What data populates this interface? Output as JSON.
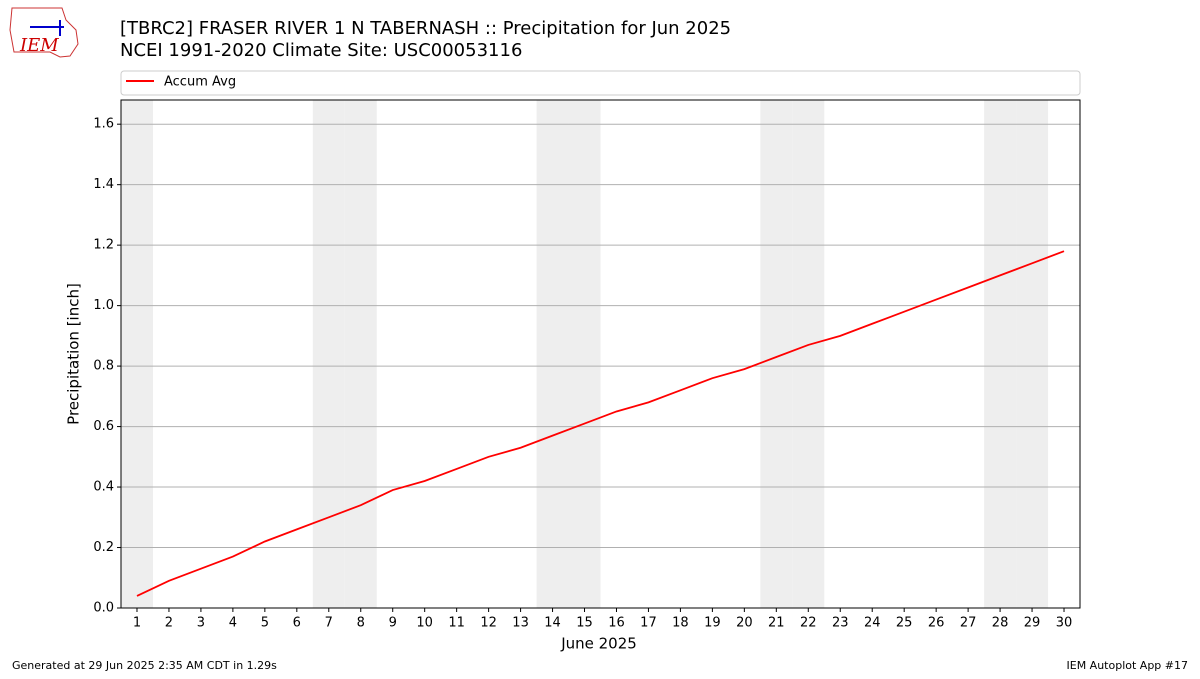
{
  "logo_text": "IEM",
  "footer": {
    "left": "Generated at 29 Jun 2025 2:35 AM CDT in 1.29s",
    "right": "IEM Autoplot App #17"
  },
  "chart_data": {
    "type": "line",
    "title": "[TBRC2] FRASER RIVER 1 N TABERNASH :: Precipitation for Jun 2025",
    "subtitle": "NCEI 1991-2020 Climate Site: USC00053116",
    "x_label": "June 2025",
    "y_label": "Precipitation [inch]",
    "x": [
      1,
      2,
      3,
      4,
      5,
      6,
      7,
      8,
      9,
      10,
      11,
      12,
      13,
      14,
      15,
      16,
      17,
      18,
      19,
      20,
      21,
      22,
      23,
      24,
      25,
      26,
      27,
      28,
      29,
      30
    ],
    "series": [
      {
        "name": "Accum Avg",
        "color": "#ff0000",
        "values": [
          0.04,
          0.09,
          0.13,
          0.17,
          0.22,
          0.26,
          0.3,
          0.34,
          0.39,
          0.42,
          0.46,
          0.5,
          0.53,
          0.57,
          0.61,
          0.65,
          0.68,
          0.72,
          0.76,
          0.79,
          0.83,
          0.87,
          0.9,
          0.94,
          0.98,
          1.02,
          1.06,
          1.1,
          1.14,
          1.18
        ]
      }
    ],
    "shaded_days": [
      1,
      7,
      8,
      14,
      15,
      21,
      22,
      28,
      29
    ],
    "shade_color": "#eeeeee",
    "xlim": [
      0.5,
      30.5
    ],
    "xticks": [
      1,
      2,
      3,
      4,
      5,
      6,
      7,
      8,
      9,
      10,
      11,
      12,
      13,
      14,
      15,
      16,
      17,
      18,
      19,
      20,
      21,
      22,
      23,
      24,
      25,
      26,
      27,
      28,
      29,
      30
    ],
    "ylim": [
      0,
      1.68
    ],
    "yticks": [
      {
        "value": 0,
        "label": "0.0"
      },
      {
        "value": 0.2,
        "label": "0.2"
      },
      {
        "value": 0.4,
        "label": "0.4"
      },
      {
        "value": 0.6,
        "label": "0.6"
      },
      {
        "value": 0.8,
        "label": "0.8"
      },
      {
        "value": 1.0,
        "label": "1.0"
      },
      {
        "value": 1.2,
        "label": "1.2"
      },
      {
        "value": 1.4,
        "label": "1.4"
      },
      {
        "value": 1.6,
        "label": "1.6"
      }
    ],
    "grid": true,
    "legend": "top"
  }
}
